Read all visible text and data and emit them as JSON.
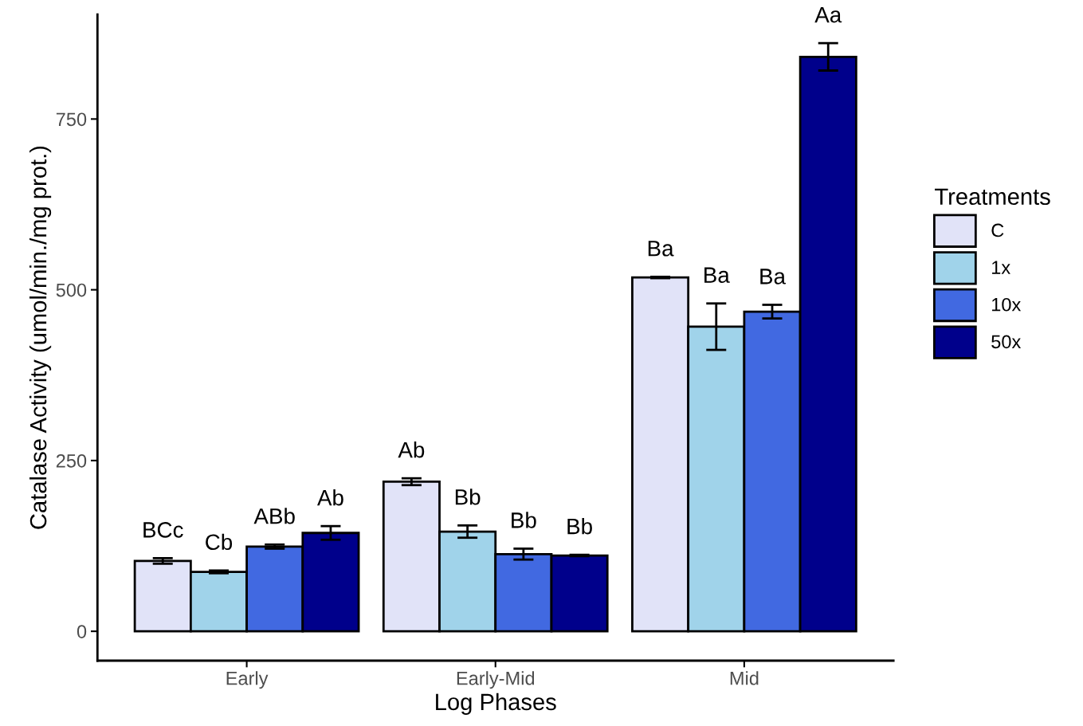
{
  "chart_data": {
    "type": "bar",
    "xlabel": "Log Phases",
    "ylabel": "Catalase Activity (umol/min./mg prot.)",
    "legend_title": "Treatments",
    "categories": [
      "Early",
      "Early-Mid",
      "Mid"
    ],
    "series": [
      {
        "name": "C",
        "color": "#e1e3f8",
        "values": [
          103,
          219,
          518
        ],
        "errors": [
          4,
          5,
          1
        ],
        "value_labels": [
          "BCc",
          "Ab",
          "Ba"
        ]
      },
      {
        "name": "1x",
        "color": "#a0d3ea",
        "values": [
          87,
          146,
          446
        ],
        "errors": [
          2,
          9,
          34
        ],
        "value_labels": [
          "Cb",
          "Bb",
          "Ba"
        ]
      },
      {
        "name": "10x",
        "color": "#4169e1",
        "values": [
          124,
          113,
          468
        ],
        "errors": [
          3,
          8,
          10
        ],
        "value_labels": [
          "ABb",
          "Bb",
          "Ba"
        ]
      },
      {
        "name": "50x",
        "color": "#00008b",
        "values": [
          144,
          111,
          841
        ],
        "errors": [
          10,
          1,
          20
        ],
        "value_labels": [
          "Ab",
          "Bb",
          "Aa"
        ]
      }
    ],
    "ylim": [
      -43,
      903
    ],
    "yticks": [
      0,
      250,
      500,
      750
    ],
    "grid": false,
    "legend": "right"
  }
}
